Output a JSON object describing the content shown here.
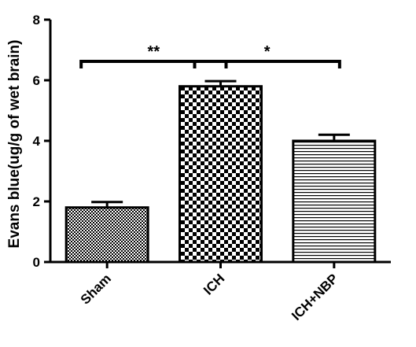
{
  "chart_data": {
    "type": "bar",
    "title": "",
    "xlabel": "",
    "ylabel": "Evans blue(ug/g of wet brain)",
    "ylim": [
      0,
      8
    ],
    "yticks": [
      0,
      2,
      4,
      6,
      8
    ],
    "categories": [
      "Sham",
      "ICH",
      "ICH+NBP"
    ],
    "values": [
      1.8,
      5.8,
      4.0
    ],
    "errors": [
      0.18,
      0.17,
      0.2
    ],
    "patterns": [
      "fine-checker",
      "coarse-checker",
      "horizontal-lines"
    ],
    "grid": false,
    "legend": "none",
    "annotations": [
      {
        "from": 0,
        "to": 1,
        "label": "**",
        "y": 6.6
      },
      {
        "from": 1,
        "to": 2,
        "label": "*",
        "y": 6.6
      }
    ]
  },
  "colors": {
    "bar_outline": "#000000",
    "pattern_ink": "#000000",
    "background": "#ffffff"
  }
}
